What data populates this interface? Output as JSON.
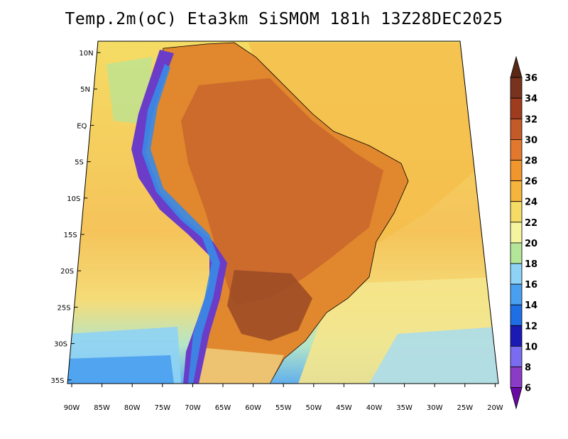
{
  "title": "Temp.2m(oC) Eta3km SiSMOM 181h 13Z28DEC2025",
  "map": {
    "variable": "2-m air temperature",
    "units": "oC",
    "region": "South America",
    "lat_labels": [
      "10N",
      "5N",
      "EQ",
      "5S",
      "10S",
      "15S",
      "20S",
      "25S",
      "30S",
      "35S"
    ],
    "lon_labels": [
      "90W",
      "85W",
      "80W",
      "75W",
      "70W",
      "65W",
      "60W",
      "55W",
      "50W",
      "45W",
      "40W",
      "35W",
      "30W",
      "25W",
      "20W"
    ]
  },
  "colorbar": {
    "labels": [
      "6",
      "8",
      "10",
      "12",
      "14",
      "16",
      "18",
      "20",
      "22",
      "24",
      "26",
      "28",
      "30",
      "32",
      "34",
      "36"
    ],
    "colors": [
      "#6a0aa5",
      "#8a3bc8",
      "#7a6cf0",
      "#1a1ab4",
      "#1e6ee6",
      "#4aa0f0",
      "#8ed2f5",
      "#b4e69a",
      "#f5f5a0",
      "#f5dc64",
      "#f5b43c",
      "#f0962d",
      "#e1782d",
      "#c35a28",
      "#a03c1e",
      "#78321e",
      "#5a2814"
    ]
  },
  "colors": {
    "ocean_warm": "#f5c85a",
    "ocean_cool": "#f5e68c",
    "land_hot": "#d2783c",
    "land_very_hot": "#a0502a",
    "andes_cold": "#6a3cc8",
    "coastline": "#000000"
  }
}
